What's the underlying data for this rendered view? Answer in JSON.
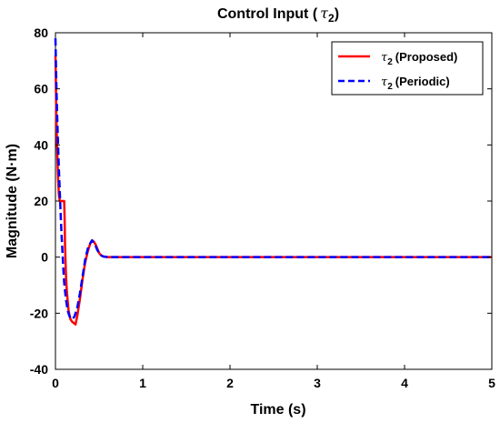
{
  "chart_data": {
    "type": "line",
    "title": "Control Input (",
    "title_symbol": "τ",
    "title_sub": "2",
    "title_close": ")",
    "xlabel": "Time (s)",
    "ylabel": "Magnitude (N·m)",
    "xlim": [
      0,
      5
    ],
    "ylim": [
      -40,
      80
    ],
    "xticks": [
      0,
      1,
      2,
      3,
      4,
      5
    ],
    "yticks": [
      -40,
      -20,
      0,
      20,
      40,
      60,
      80
    ],
    "grid": false,
    "legend_position": "top-right",
    "series": [
      {
        "name": "(Proposed)",
        "symbol": "τ",
        "sub": "2",
        "color": "#ff0000",
        "style": "solid",
        "x": [
          0,
          0.005,
          0.01,
          0.02,
          0.03,
          0.04,
          0.05,
          0.06,
          0.07,
          0.08,
          0.09,
          0.1,
          0.105,
          0.11,
          0.12,
          0.13,
          0.15,
          0.17,
          0.19,
          0.21,
          0.23,
          0.25,
          0.28,
          0.31,
          0.34,
          0.37,
          0.4,
          0.42,
          0.44,
          0.46,
          0.48,
          0.5,
          0.52,
          0.55,
          0.6,
          0.7,
          1.0,
          2.0,
          3.0,
          4.0,
          5.0
        ],
        "y": [
          72,
          62,
          50,
          38,
          28,
          22,
          20,
          20,
          20,
          20,
          20,
          20,
          14,
          4,
          -6,
          -12,
          -19,
          -22,
          -23,
          -23.5,
          -24,
          -21,
          -15,
          -8,
          -2,
          2,
          5,
          6,
          5.5,
          4.5,
          3,
          1.5,
          0.7,
          0.2,
          0,
          0,
          0,
          0,
          0,
          0,
          0
        ]
      },
      {
        "name": "(Periodic)",
        "symbol": "τ",
        "sub": "2",
        "color": "#0000ff",
        "style": "dashed",
        "x": [
          0,
          0.005,
          0.01,
          0.02,
          0.03,
          0.04,
          0.05,
          0.06,
          0.07,
          0.08,
          0.09,
          0.1,
          0.12,
          0.14,
          0.16,
          0.18,
          0.2,
          0.22,
          0.25,
          0.28,
          0.31,
          0.34,
          0.37,
          0.4,
          0.42,
          0.44,
          0.46,
          0.48,
          0.5,
          0.52,
          0.55,
          0.6,
          0.7,
          1.0,
          2.0,
          3.0,
          4.0,
          5.0
        ],
        "y": [
          78,
          70,
          62,
          50,
          40,
          31,
          23,
          15,
          8,
          2,
          -4,
          -9,
          -15,
          -19,
          -21,
          -22,
          -22,
          -21,
          -18,
          -13,
          -7,
          -1,
          3,
          5,
          6,
          5,
          4,
          2.5,
          1.5,
          0.7,
          0.2,
          0,
          0,
          0,
          0,
          0,
          0,
          0
        ]
      }
    ]
  }
}
